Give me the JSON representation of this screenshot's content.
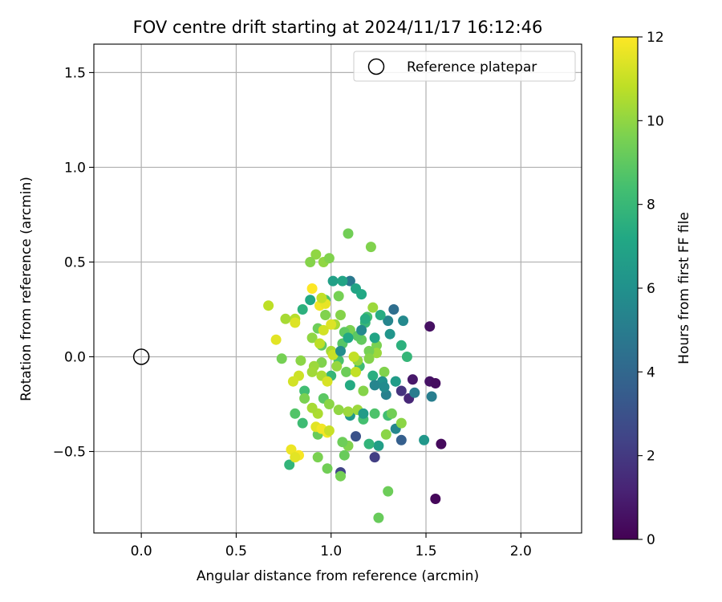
{
  "chart_data": {
    "type": "scatter",
    "title": "FOV centre drift starting at 2024/11/17 16:12:46",
    "xlabel": "Angular distance from reference (arcmin)",
    "ylabel": "Rotation from reference (arcmin)",
    "xlim": [
      -0.25,
      2.32
    ],
    "ylim": [
      -0.93,
      1.65
    ],
    "xticks": [
      0.0,
      0.5,
      1.0,
      1.5,
      2.0
    ],
    "xtick_labels": [
      "0.0",
      "0.5",
      "1.0",
      "1.5",
      "2.0"
    ],
    "yticks": [
      -0.5,
      0.0,
      0.5,
      1.0,
      1.5
    ],
    "ytick_labels": [
      "−0.5",
      "0.0",
      "0.5",
      "1.0",
      "1.5"
    ],
    "grid": true,
    "legend": {
      "position": "top-right",
      "entries": [
        "Reference platepar"
      ]
    },
    "reference_point": {
      "name": "Reference platepar",
      "x": 0.0,
      "y": 0.0
    },
    "colorbar": {
      "label": "Hours from first FF file",
      "range": [
        0,
        12
      ],
      "ticks": [
        0,
        2,
        4,
        6,
        8,
        10,
        12
      ],
      "colormap": "viridis"
    },
    "points": [
      [
        1.55,
        -0.75,
        0.2
      ],
      [
        1.58,
        -0.46,
        0.3
      ],
      [
        1.52,
        0.16,
        0.5
      ],
      [
        1.52,
        -0.13,
        0.6
      ],
      [
        1.55,
        -0.14,
        0.4
      ],
      [
        1.43,
        -0.12,
        0.8
      ],
      [
        1.41,
        -0.22,
        1.3
      ],
      [
        1.37,
        -0.18,
        1.8
      ],
      [
        1.23,
        -0.53,
        2.2
      ],
      [
        1.05,
        -0.61,
        2.4
      ],
      [
        1.13,
        -0.42,
        3.0
      ],
      [
        1.37,
        -0.44,
        3.6
      ],
      [
        1.33,
        0.25,
        4.3
      ],
      [
        1.1,
        0.4,
        4.8
      ],
      [
        1.44,
        -0.19,
        5.0
      ],
      [
        1.53,
        -0.21,
        5.1
      ],
      [
        1.34,
        -0.38,
        5.5
      ],
      [
        1.29,
        -0.2,
        5.2
      ],
      [
        1.34,
        -0.13,
        5.8
      ],
      [
        1.3,
        0.19,
        5.4
      ],
      [
        1.38,
        0.19,
        5.6
      ],
      [
        1.49,
        -0.44,
        6.3
      ],
      [
        1.25,
        -0.47,
        6.7
      ],
      [
        1.1,
        -0.31,
        6.4
      ],
      [
        1.01,
        0.4,
        6.8
      ],
      [
        1.06,
        0.4,
        7.0
      ],
      [
        1.13,
        0.36,
        7.0
      ],
      [
        1.16,
        0.33,
        7.2
      ],
      [
        1.37,
        0.06,
        7.6
      ],
      [
        1.4,
        0.0,
        7.9
      ],
      [
        1.2,
        -0.46,
        7.8
      ],
      [
        1.26,
        0.22,
        7.4
      ],
      [
        0.89,
        0.3,
        7.2
      ],
      [
        0.85,
        0.25,
        7.6
      ],
      [
        0.97,
        0.3,
        8.6
      ],
      [
        0.78,
        -0.57,
        7.8
      ],
      [
        0.85,
        -0.35,
        8.2
      ],
      [
        0.81,
        -0.3,
        8.7
      ],
      [
        0.86,
        -0.18,
        8.3
      ],
      [
        1.3,
        -0.31,
        8.3
      ],
      [
        1.23,
        -0.3,
        8.6
      ],
      [
        1.17,
        -0.33,
        8.4
      ],
      [
        1.15,
        -0.05,
        8.2
      ],
      [
        1.18,
        0.18,
        8.0
      ],
      [
        1.22,
        -0.1,
        7.5
      ],
      [
        1.1,
        -0.15,
        7.3
      ],
      [
        1.04,
        -0.02,
        8.5
      ],
      [
        1.0,
        -0.1,
        7.9
      ],
      [
        0.96,
        -0.22,
        8.9
      ],
      [
        0.93,
        -0.41,
        9.2
      ],
      [
        1.07,
        -0.52,
        9.2
      ],
      [
        1.25,
        -0.85,
        9.2
      ],
      [
        1.3,
        -0.71,
        9.3
      ],
      [
        1.05,
        -0.63,
        9.5
      ],
      [
        0.98,
        -0.59,
        9.4
      ],
      [
        0.93,
        -0.53,
        9.6
      ],
      [
        1.09,
        -0.47,
        9.7
      ],
      [
        1.06,
        -0.45,
        9.3
      ],
      [
        1.09,
        0.65,
        9.4
      ],
      [
        1.21,
        0.58,
        9.7
      ],
      [
        0.92,
        0.54,
        10.0
      ],
      [
        0.89,
        0.5,
        9.8
      ],
      [
        0.96,
        0.5,
        10.0
      ],
      [
        0.99,
        0.52,
        9.7
      ],
      [
        1.22,
        0.26,
        10.2
      ],
      [
        1.05,
        0.22,
        9.8
      ],
      [
        0.97,
        0.22,
        9.7
      ],
      [
        1.02,
        0.17,
        10.4
      ],
      [
        1.04,
        0.32,
        9.5
      ],
      [
        1.1,
        0.14,
        9.6
      ],
      [
        0.93,
        0.15,
        9.3
      ],
      [
        0.9,
        0.1,
        10.0
      ],
      [
        0.95,
        0.06,
        9.0
      ],
      [
        1.06,
        0.07,
        8.8
      ],
      [
        1.16,
        0.09,
        9.1
      ],
      [
        1.24,
        0.06,
        9.6
      ],
      [
        1.24,
        0.02,
        10.2
      ],
      [
        1.2,
        0.03,
        9.5
      ],
      [
        1.14,
        -0.02,
        10.1
      ],
      [
        1.08,
        -0.08,
        9.3
      ],
      [
        1.03,
        -0.05,
        10.1
      ],
      [
        1.0,
        0.03,
        10.4
      ],
      [
        0.95,
        -0.03,
        9.7
      ],
      [
        0.91,
        -0.05,
        10.2
      ],
      [
        0.84,
        -0.02,
        9.9
      ],
      [
        0.81,
        0.2,
        10.7
      ],
      [
        0.76,
        0.2,
        10.4
      ],
      [
        0.74,
        -0.01,
        9.5
      ],
      [
        0.67,
        0.27,
        10.8
      ],
      [
        0.71,
        0.09,
        11.5
      ],
      [
        0.83,
        -0.1,
        11.1
      ],
      [
        0.8,
        -0.13,
        11.2
      ],
      [
        0.9,
        -0.08,
        10.3
      ],
      [
        0.95,
        -0.1,
        10.5
      ],
      [
        1.13,
        -0.08,
        10.9
      ],
      [
        1.2,
        -0.01,
        9.8
      ],
      [
        1.28,
        -0.08,
        9.7
      ],
      [
        1.32,
        -0.3,
        9.4
      ],
      [
        1.37,
        -0.35,
        9.9
      ],
      [
        1.29,
        -0.41,
        9.9
      ],
      [
        1.17,
        -0.18,
        9.8
      ],
      [
        1.14,
        -0.28,
        10.2
      ],
      [
        1.09,
        -0.29,
        10.2
      ],
      [
        1.04,
        -0.28,
        10.0
      ],
      [
        0.99,
        -0.25,
        9.9
      ],
      [
        0.93,
        -0.3,
        10.5
      ],
      [
        0.9,
        -0.27,
        10.4
      ],
      [
        0.92,
        -0.37,
        11.5
      ],
      [
        0.95,
        -0.38,
        11.8
      ],
      [
        0.98,
        -0.4,
        11.8
      ],
      [
        0.99,
        -0.39,
        11.0
      ],
      [
        0.79,
        -0.49,
        11.7
      ],
      [
        0.83,
        -0.52,
        11.9
      ],
      [
        0.81,
        -0.53,
        11.5
      ],
      [
        0.94,
        0.27,
        11.8
      ],
      [
        0.97,
        0.28,
        11.6
      ],
      [
        0.9,
        0.36,
        12.0
      ],
      [
        0.95,
        0.31,
        10.9
      ],
      [
        0.81,
        0.18,
        11.4
      ],
      [
        1.0,
        0.17,
        11.4
      ],
      [
        0.96,
        0.14,
        11.2
      ],
      [
        0.94,
        0.07,
        10.8
      ],
      [
        1.01,
        0.01,
        11.0
      ],
      [
        1.12,
        0.0,
        10.9
      ],
      [
        0.98,
        -0.13,
        11.3
      ],
      [
        0.86,
        -0.22,
        9.6
      ],
      [
        1.14,
        0.11,
        8.9
      ],
      [
        1.07,
        0.13,
        9.0
      ],
      [
        1.19,
        0.21,
        8.4
      ],
      [
        1.31,
        0.12,
        6.2
      ],
      [
        1.34,
        -0.13,
        6.6
      ],
      [
        1.27,
        -0.13,
        6.0
      ],
      [
        1.23,
        -0.15,
        5.4
      ],
      [
        1.28,
        -0.16,
        5.7
      ],
      [
        1.17,
        -0.3,
        6.6
      ],
      [
        1.05,
        0.03,
        5.8
      ],
      [
        1.16,
        0.14,
        5.6
      ],
      [
        1.09,
        0.1,
        7.2
      ],
      [
        1.18,
        0.2,
        7.4
      ],
      [
        1.23,
        0.1,
        7.0
      ]
    ]
  }
}
